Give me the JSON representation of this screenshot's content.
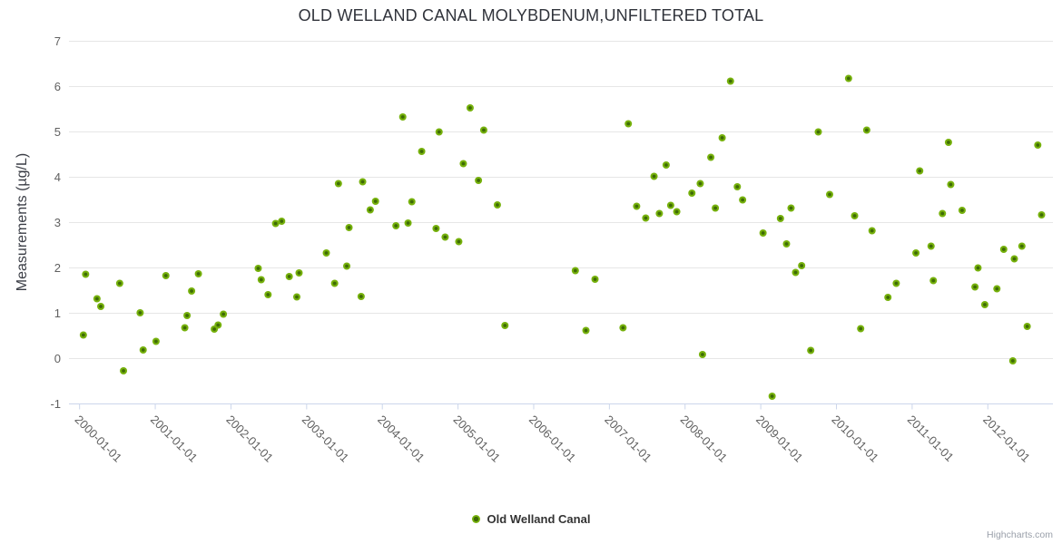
{
  "chart": {
    "title": "OLD WELLAND CANAL MOLYBDENUM,UNFILTERED TOTAL",
    "y_axis_title": "Measurements (µg/L)",
    "legend_label": "Old Welland Canal",
    "credits": "Highcharts.com"
  },
  "colors": {
    "marker_outer": "#76b10c",
    "marker_core": "#3e6b05",
    "gridline": "#e6e6e6",
    "axis_line": "#ccd6eb",
    "tick_label": "#606060",
    "title_text": "#30333b",
    "credits_text": "#999fa9"
  },
  "chart_data": {
    "type": "scatter",
    "title": "OLD WELLAND CANAL MOLYBDENUM,UNFILTERED TOTAL",
    "xlabel": "",
    "ylabel": "Measurements (µg/L)",
    "ylim": [
      -1,
      7
    ],
    "y_ticks": [
      7,
      6,
      5,
      4,
      3,
      2,
      1,
      0,
      -1
    ],
    "x_tick_labels": [
      "2000-01-01",
      "2001-01-01",
      "2002-01-01",
      "2003-01-01",
      "2004-01-01",
      "2005-01-01",
      "2006-01-01",
      "2007-01-01",
      "2008-01-01",
      "2009-01-01",
      "2010-01-01",
      "2011-01-01",
      "2012-01-01"
    ],
    "xlim_years": [
      1999.86,
      2012.86
    ],
    "grid": "horizontal-only",
    "legend_position": "bottom-center",
    "legend_entries": [
      "Old Welland Canal"
    ],
    "series": [
      {
        "name": "Old Welland Canal",
        "x_unit": "decimal-year",
        "points": [
          [
            2000.05,
            0.52
          ],
          [
            2000.08,
            1.86
          ],
          [
            2000.23,
            1.32
          ],
          [
            2000.28,
            1.15
          ],
          [
            2000.53,
            1.66
          ],
          [
            2000.58,
            -0.27
          ],
          [
            2000.8,
            1.01
          ],
          [
            2000.84,
            0.19
          ],
          [
            2001.01,
            0.38
          ],
          [
            2001.14,
            1.83
          ],
          [
            2001.39,
            0.68
          ],
          [
            2001.42,
            0.95
          ],
          [
            2001.48,
            1.49
          ],
          [
            2001.57,
            1.87
          ],
          [
            2001.78,
            0.65
          ],
          [
            2001.83,
            0.74
          ],
          [
            2001.9,
            0.98
          ],
          [
            2002.36,
            1.99
          ],
          [
            2002.4,
            1.74
          ],
          [
            2002.49,
            1.41
          ],
          [
            2002.59,
            2.98
          ],
          [
            2002.67,
            3.03
          ],
          [
            2002.77,
            1.81
          ],
          [
            2002.87,
            1.36
          ],
          [
            2002.9,
            1.89
          ],
          [
            2003.26,
            2.33
          ],
          [
            2003.37,
            1.66
          ],
          [
            2003.42,
            3.86
          ],
          [
            2003.53,
            2.04
          ],
          [
            2003.56,
            2.89
          ],
          [
            2003.72,
            1.37
          ],
          [
            2003.74,
            3.9
          ],
          [
            2003.84,
            3.28
          ],
          [
            2003.91,
            3.47
          ],
          [
            2004.18,
            2.93
          ],
          [
            2004.27,
            5.33
          ],
          [
            2004.34,
            2.99
          ],
          [
            2004.39,
            3.46
          ],
          [
            2004.52,
            4.57
          ],
          [
            2004.71,
            2.87
          ],
          [
            2004.75,
            5.0
          ],
          [
            2004.83,
            2.68
          ],
          [
            2005.01,
            2.58
          ],
          [
            2005.07,
            4.3
          ],
          [
            2005.16,
            5.53
          ],
          [
            2005.27,
            3.93
          ],
          [
            2005.34,
            5.04
          ],
          [
            2005.52,
            3.39
          ],
          [
            2005.62,
            0.73
          ],
          [
            2006.55,
            1.94
          ],
          [
            2006.69,
            0.62
          ],
          [
            2006.81,
            1.75
          ],
          [
            2007.18,
            0.68
          ],
          [
            2007.25,
            5.18
          ],
          [
            2007.36,
            3.36
          ],
          [
            2007.48,
            3.1
          ],
          [
            2007.59,
            4.02
          ],
          [
            2007.66,
            3.2
          ],
          [
            2007.75,
            4.27
          ],
          [
            2007.81,
            3.38
          ],
          [
            2007.89,
            3.24
          ],
          [
            2008.09,
            3.65
          ],
          [
            2008.2,
            3.86
          ],
          [
            2008.23,
            0.09
          ],
          [
            2008.34,
            4.44
          ],
          [
            2008.4,
            3.32
          ],
          [
            2008.49,
            4.87
          ],
          [
            2008.6,
            6.12
          ],
          [
            2008.69,
            3.79
          ],
          [
            2008.76,
            3.5
          ],
          [
            2009.03,
            2.77
          ],
          [
            2009.15,
            -0.83
          ],
          [
            2009.26,
            3.09
          ],
          [
            2009.34,
            2.53
          ],
          [
            2009.4,
            3.32
          ],
          [
            2009.46,
            1.9
          ],
          [
            2009.54,
            2.05
          ],
          [
            2009.66,
            0.18
          ],
          [
            2009.76,
            5.0
          ],
          [
            2009.91,
            3.62
          ],
          [
            2010.16,
            6.18
          ],
          [
            2010.24,
            3.15
          ],
          [
            2010.32,
            0.66
          ],
          [
            2010.4,
            5.04
          ],
          [
            2010.47,
            2.82
          ],
          [
            2010.68,
            1.35
          ],
          [
            2010.79,
            1.66
          ],
          [
            2011.05,
            2.33
          ],
          [
            2011.1,
            4.14
          ],
          [
            2011.25,
            2.48
          ],
          [
            2011.28,
            1.72
          ],
          [
            2011.4,
            3.2
          ],
          [
            2011.48,
            4.77
          ],
          [
            2011.51,
            3.84
          ],
          [
            2011.66,
            3.27
          ],
          [
            2011.83,
            1.58
          ],
          [
            2011.87,
            2.0
          ],
          [
            2011.96,
            1.19
          ],
          [
            2012.12,
            1.54
          ],
          [
            2012.21,
            2.41
          ],
          [
            2012.33,
            -0.05
          ],
          [
            2012.35,
            2.2
          ],
          [
            2012.45,
            2.48
          ],
          [
            2012.52,
            0.71
          ],
          [
            2012.66,
            4.71
          ],
          [
            2012.71,
            3.17
          ]
        ]
      }
    ]
  }
}
